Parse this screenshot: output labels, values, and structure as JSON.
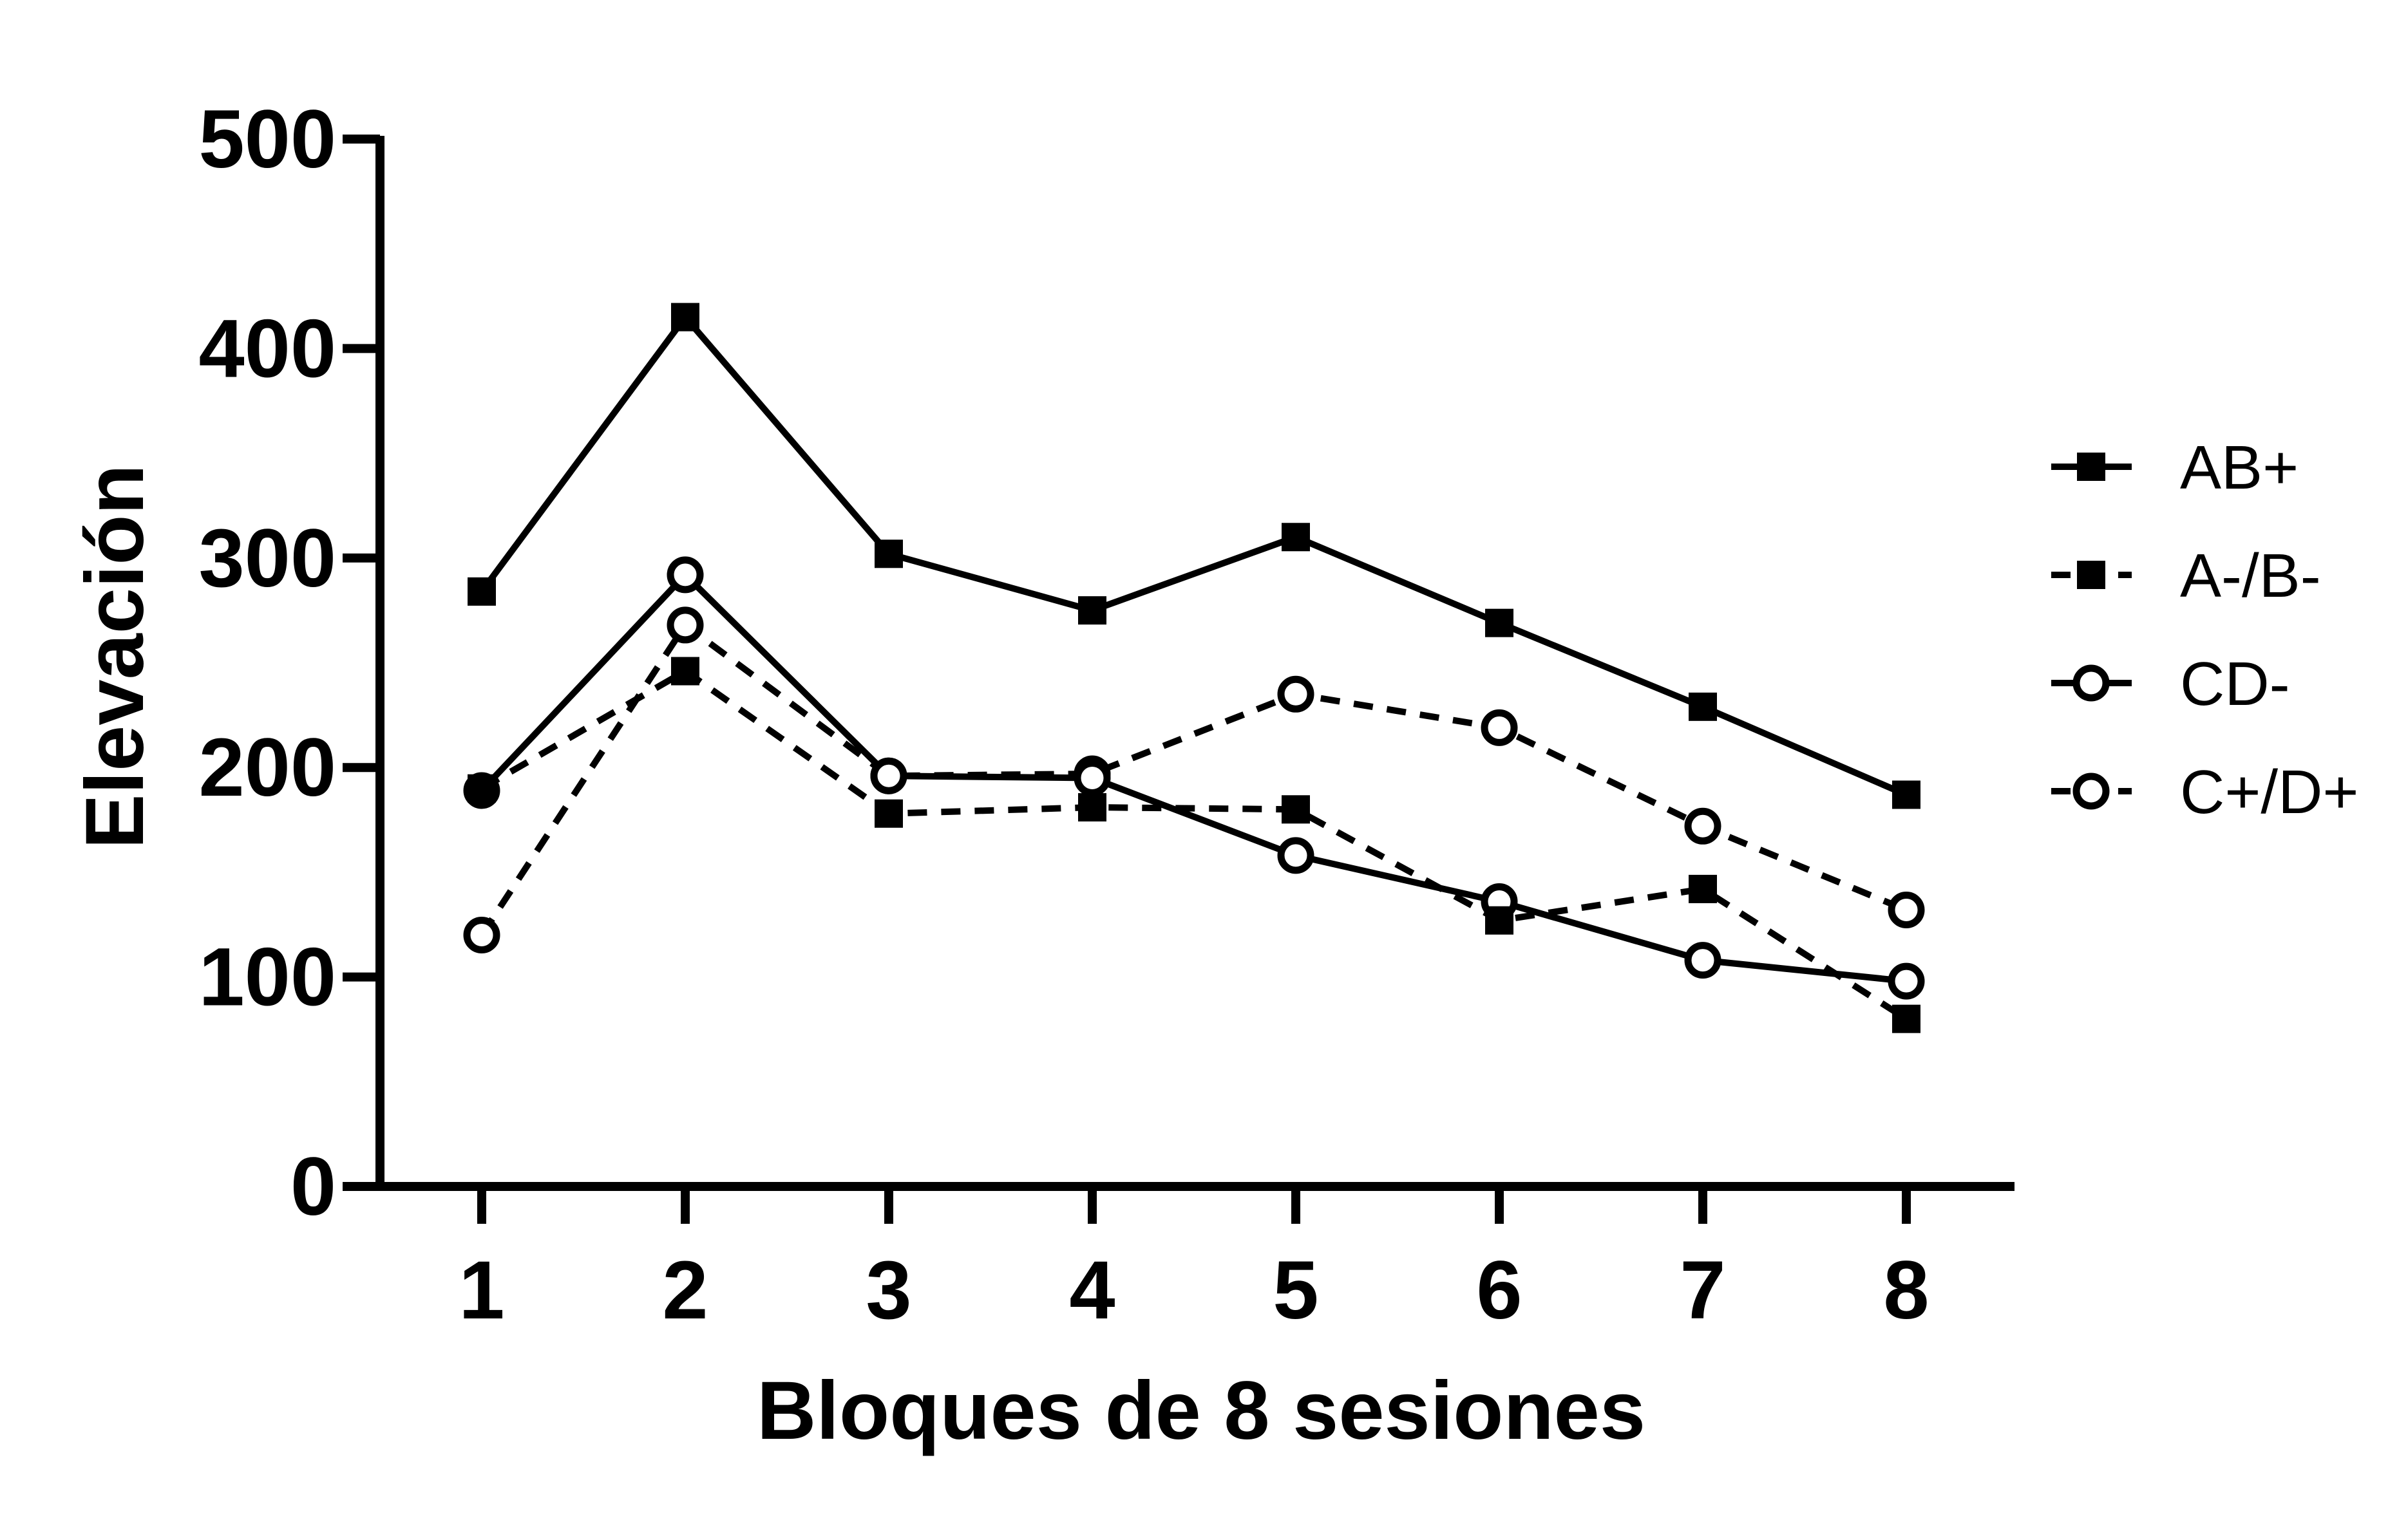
{
  "chart_data": {
    "type": "line",
    "title": "",
    "xlabel": "Bloques de 8 sesiones",
    "ylabel": "Elevación",
    "categories": [
      "1",
      "2",
      "3",
      "4",
      "5",
      "6",
      "7",
      "8"
    ],
    "ylim": [
      0,
      500
    ],
    "yticks": [
      "0",
      "100",
      "200",
      "300",
      "400",
      "500"
    ],
    "grid": false,
    "legend_position": "right",
    "series": [
      {
        "name": "AB+",
        "values": [
          284,
          415,
          302,
          275,
          310,
          269,
          229,
          187
        ],
        "marker": "filled-square",
        "line": "solid"
      },
      {
        "name": "A-/B-",
        "values": [
          190,
          246,
          178,
          181,
          180,
          127,
          142,
          80
        ],
        "marker": "filled-square",
        "line": "dashed"
      },
      {
        "name": "CD-",
        "values": [
          189,
          292,
          196,
          195,
          158,
          136,
          108,
          98
        ],
        "marker": "open-circle",
        "line": "solid"
      },
      {
        "name": "C+/D+",
        "values": [
          120,
          268,
          196,
          197,
          235,
          219,
          172,
          132
        ],
        "marker": "open-circle",
        "line": "dashed"
      }
    ],
    "colors": {
      "line": "#000000",
      "background": "#ffffff"
    }
  }
}
